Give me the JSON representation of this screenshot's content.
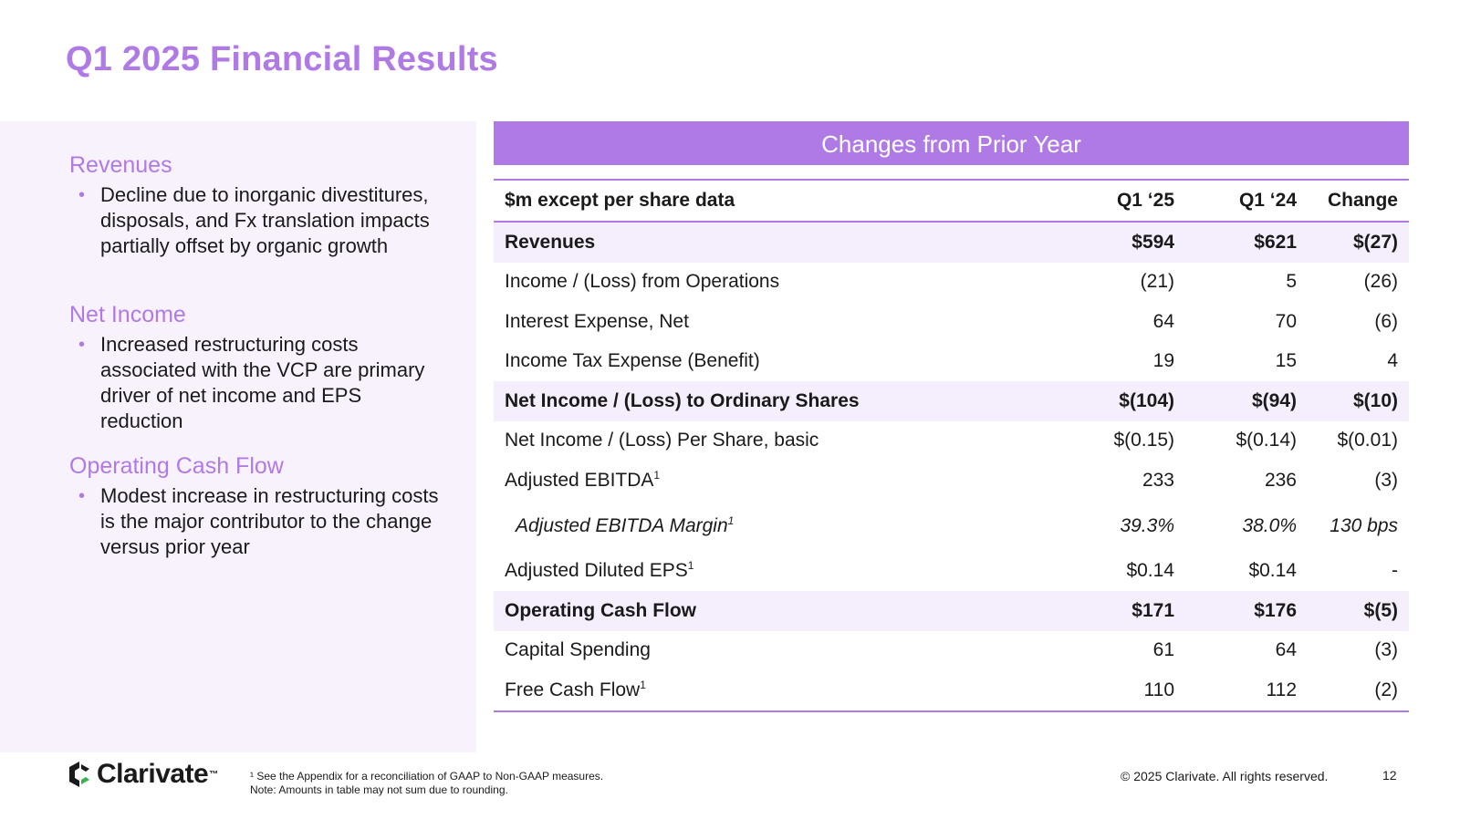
{
  "title": "Q1 2025 Financial Results",
  "left_panel": {
    "sections": [
      {
        "heading": "Revenues",
        "bullet": "Decline due to inorganic divestitures, disposals, and Fx translation impacts partially offset by organic growth"
      },
      {
        "heading": "Net Income",
        "bullet": "Increased restructuring costs associated with the VCP are primary driver of net income and EPS reduction"
      },
      {
        "heading": "Operating Cash Flow",
        "bullet": "Modest increase in restructuring costs is the major contributor to the change versus prior year"
      }
    ]
  },
  "table": {
    "header": "Changes from Prior Year",
    "columns": [
      "$m except per share data",
      "Q1 ‘25",
      "Q1 ‘24",
      "Change"
    ],
    "rows": [
      {
        "label": "Revenues",
        "sup": "",
        "q125": "$594",
        "q124": "$621",
        "change": "$(27)"
      },
      {
        "label": "Income / (Loss) from Operations",
        "sup": "",
        "q125": "(21)",
        "q124": "5",
        "change": "(26)"
      },
      {
        "label": "Interest Expense, Net",
        "sup": "",
        "q125": "64",
        "q124": "70",
        "change": "(6)"
      },
      {
        "label": "Income Tax Expense (Benefit)",
        "sup": "",
        "q125": "19",
        "q124": "15",
        "change": "4"
      },
      {
        "label": "Net Income / (Loss) to Ordinary Shares",
        "sup": "",
        "q125": "$(104)",
        "q124": "$(94)",
        "change": "$(10)"
      },
      {
        "label": "Net Income / (Loss) Per Share, basic",
        "sup": "",
        "q125": "$(0.15)",
        "q124": "$(0.14)",
        "change": "$(0.01)"
      },
      {
        "label": "Adjusted EBITDA",
        "sup": "1",
        "q125": "233",
        "q124": "236",
        "change": "(3)"
      },
      {
        "label": "Adjusted EBITDA Margin",
        "sup": "1",
        "q125": "39.3%",
        "q124": "38.0%",
        "change": "130 bps"
      },
      {
        "label": "Adjusted Diluted EPS",
        "sup": "1",
        "q125": "$0.14",
        "q124": "$0.14",
        "change": "-"
      },
      {
        "label": "Operating Cash Flow",
        "sup": "",
        "q125": "$171",
        "q124": "$176",
        "change": "$(5)"
      },
      {
        "label": "Capital Spending",
        "sup": "",
        "q125": "61",
        "q124": "64",
        "change": "(3)"
      },
      {
        "label": "Free Cash Flow",
        "sup": "1",
        "q125": "110",
        "q124": "112",
        "change": "(2)"
      }
    ]
  },
  "footer": {
    "logo_text": "Clarivate",
    "logo_tm": "™",
    "footnote_1": "¹ See the Appendix for a reconciliation of GAAP to Non-GAAP measures.",
    "footnote_2": "Note: Amounts in table may not sum due to rounding.",
    "copyright": "© 2025 Clarivate. All rights reserved.",
    "page_number": "12"
  },
  "colors": {
    "accent": "#b07ae6",
    "panel_bg": "#f8f2fd",
    "row_highlight": "#f5eefc"
  }
}
